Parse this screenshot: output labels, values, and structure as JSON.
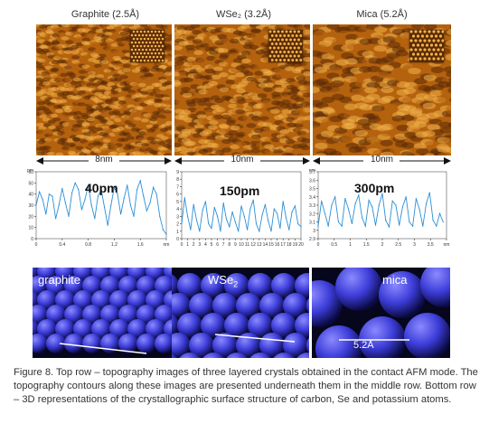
{
  "columns": [
    {
      "title": "Graphite (2.5Å)",
      "scale": "8nm",
      "peak": "40pm",
      "render_label": "graphite",
      "render_sub": "",
      "render_dim": ""
    },
    {
      "title": "WSe₂ (3.2Å)",
      "scale": "10nm",
      "peak": "150pm",
      "render_label": "WSe",
      "render_sub": "2",
      "render_dim": ""
    },
    {
      "title": "Mica (5.2Å)",
      "scale": "10nm",
      "peak": "300pm",
      "render_label": "mica",
      "render_sub": "",
      "render_dim": "5.2Å"
    }
  ],
  "colors": {
    "afm_dark": "#5a2a06",
    "afm_mid": "#b5620f",
    "afm_light": "#f0b24a",
    "profile_line": "#2b8fd6",
    "sphere": "#3c3cd8"
  },
  "chart_data": [
    {
      "type": "line",
      "title": "40pm",
      "xlabel": "nm",
      "ylabel": "pm",
      "xlim": [
        0,
        2.0
      ],
      "ylim": [
        0,
        60
      ],
      "x_ticks": [
        "0",
        "0.4",
        "0.8",
        "1.2",
        "1.6",
        "nm"
      ],
      "y_ticks": [
        "0",
        "10",
        "20",
        "30",
        "40",
        "50",
        "60"
      ],
      "y_unit": "pm",
      "series": [
        {
          "x": [
            0,
            0.05,
            0.1,
            0.15,
            0.2,
            0.25,
            0.3,
            0.35,
            0.4,
            0.45,
            0.5,
            0.55,
            0.6,
            0.65,
            0.7,
            0.75,
            0.8,
            0.85,
            0.9,
            0.95,
            1.0,
            1.05,
            1.1,
            1.15,
            1.2,
            1.25,
            1.3,
            1.35,
            1.4,
            1.45,
            1.5,
            1.55,
            1.6,
            1.65,
            1.7,
            1.75,
            1.8,
            1.85,
            1.9,
            1.95,
            2.0
          ],
          "y": [
            30,
            42,
            35,
            22,
            40,
            38,
            18,
            30,
            45,
            32,
            20,
            41,
            50,
            44,
            26,
            35,
            48,
            30,
            18,
            38,
            44,
            28,
            12,
            30,
            46,
            40,
            22,
            36,
            48,
            30,
            20,
            44,
            52,
            38,
            25,
            32,
            46,
            40,
            20,
            8,
            4
          ]
        }
      ]
    },
    {
      "type": "line",
      "title": "150pm",
      "xlabel": "",
      "ylabel": "",
      "xlim": [
        0,
        20
      ],
      "ylim": [
        0,
        9
      ],
      "x_ticks": [
        "0",
        "1",
        "2",
        "3",
        "4",
        "5",
        "6",
        "7",
        "8",
        "9",
        "10",
        "11",
        "12",
        "13",
        "14",
        "15",
        "16",
        "17",
        "18",
        "19",
        "20"
      ],
      "y_ticks": [
        "0",
        "1",
        "2",
        "3",
        "4",
        "5",
        "6",
        "7",
        "8",
        "9"
      ],
      "y_unit": "",
      "series": [
        {
          "x": [
            0,
            0.5,
            1,
            1.5,
            2,
            2.5,
            3,
            3.5,
            4,
            4.5,
            5,
            5.5,
            6,
            6.5,
            7,
            7.5,
            8,
            8.5,
            9,
            9.5,
            10,
            10.5,
            11,
            11.5,
            12,
            12.5,
            13,
            13.5,
            14,
            14.5,
            15,
            15.5,
            16,
            16.5,
            17,
            17.5,
            18,
            18.5,
            19,
            19.5,
            20
          ],
          "y": [
            2.0,
            5.5,
            3.0,
            1.2,
            4.6,
            2.5,
            1.0,
            3.8,
            5.0,
            2.0,
            1.4,
            4.2,
            3.0,
            1.0,
            4.8,
            2.6,
            1.6,
            3.6,
            2.2,
            1.0,
            4.4,
            3.0,
            1.2,
            4.0,
            5.2,
            2.0,
            1.0,
            3.2,
            4.6,
            2.4,
            1.0,
            4.0,
            3.4,
            1.4,
            5.0,
            2.8,
            1.2,
            3.6,
            4.4,
            2.0,
            1.6
          ]
        }
      ]
    },
    {
      "type": "line",
      "title": "300pm",
      "xlabel": "nm",
      "ylabel": "nm",
      "xlim": [
        0,
        3.8
      ],
      "ylim": [
        2.9,
        3.7
      ],
      "x_ticks": [
        "0",
        "0.5",
        "1",
        "1.5",
        "2",
        "2.5",
        "3",
        "3.5",
        "nm"
      ],
      "y_ticks": [
        "2.9",
        "3",
        "3.1",
        "3.2",
        "3.3",
        "3.4",
        "3.5",
        "3.6",
        "3.7"
      ],
      "y_unit": "nm",
      "series": [
        {
          "x": [
            0,
            0.1,
            0.2,
            0.3,
            0.4,
            0.5,
            0.6,
            0.7,
            0.8,
            0.9,
            1.0,
            1.1,
            1.2,
            1.3,
            1.4,
            1.5,
            1.6,
            1.7,
            1.8,
            1.9,
            2.0,
            2.1,
            2.2,
            2.3,
            2.4,
            2.5,
            2.6,
            2.7,
            2.8,
            2.9,
            3.0,
            3.1,
            3.2,
            3.3,
            3.4,
            3.5,
            3.6,
            3.7
          ],
          "y": [
            3.05,
            3.35,
            3.2,
            3.05,
            3.3,
            3.4,
            3.1,
            3.05,
            3.38,
            3.25,
            3.08,
            3.32,
            3.42,
            3.15,
            3.05,
            3.36,
            3.28,
            3.06,
            3.3,
            3.44,
            3.12,
            3.04,
            3.35,
            3.3,
            3.06,
            3.28,
            3.4,
            3.1,
            3.05,
            3.38,
            3.25,
            3.05,
            3.32,
            3.45,
            3.12,
            3.05,
            3.2,
            3.1
          ]
        }
      ]
    }
  ],
  "caption": "Figure 8.  Top row – topography images of three layered crystals obtained in the contact AFM mode. The topography contours along these images are presented underneath them in the middle row. Bottom row – 3D representations of the crystallographic surface structure of carbon, Se and potassium atoms."
}
